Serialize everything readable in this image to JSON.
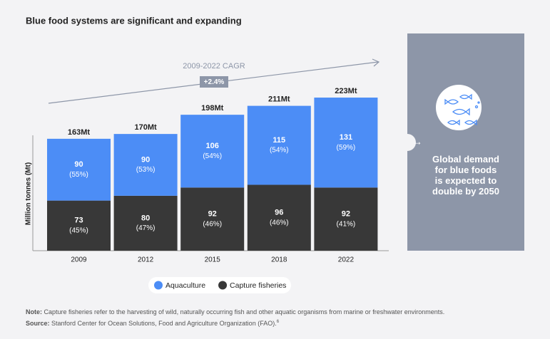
{
  "chart_data": {
    "type": "stacked-bar",
    "title": "Blue food systems are significant and expanding",
    "y_label": "Million tonnes (Mt)",
    "categories": [
      "2009",
      "2012",
      "2015",
      "2018",
      "2022"
    ],
    "series": [
      {
        "name": "Aquaculture",
        "color": "#4c8df6",
        "values": [
          90,
          90,
          106,
          115,
          131
        ],
        "share_labels": [
          "(55%)",
          "(53%)",
          "(54%)",
          "(54%)",
          "(59%)"
        ]
      },
      {
        "name": "Capture fisheries",
        "color": "#383838",
        "values": [
          73,
          80,
          92,
          96,
          92
        ],
        "share_labels": [
          "(45%)",
          "(47%)",
          "(46%)",
          "(46%)",
          "(41%)"
        ]
      }
    ],
    "total_labels": [
      "163Mt",
      "170Mt",
      "198Mt",
      "211Mt",
      "223Mt"
    ],
    "ylim": [
      0,
      250
    ],
    "cagr_label": "2009-2022 CAGR",
    "cagr_value": "+2.4%",
    "panel_text": "Global demand for blue foods is expected to double by 2050",
    "note_label": "Note:",
    "note": "Capture fisheries refer to the harvesting of wild, naturally occurring fish and other aquatic organisms from marine or freshwater environments.",
    "source_label": "Source:",
    "source": "Stanford Center for Ocean Solutions, Food and Agriculture Organization (FAO).",
    "source_ref": "6"
  }
}
